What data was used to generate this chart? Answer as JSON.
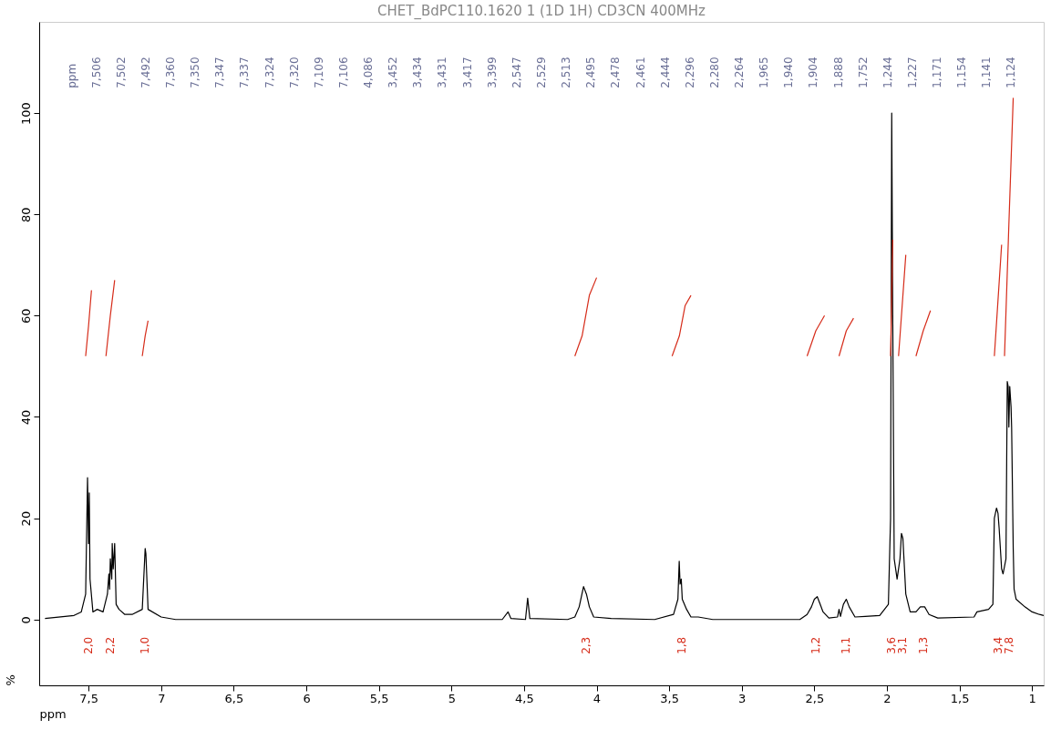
{
  "chart_data": {
    "type": "line",
    "title": "CHET_BdPC110.1620 1 (1D 1H) CD3CN 400MHz",
    "xlabel": "ppm",
    "ylabel": "%",
    "xlim": [
      7.84,
      0.92
    ],
    "ylim": [
      -13,
      118
    ],
    "xticks": [
      {
        "value": 7.5,
        "label": "7,5"
      },
      7,
      {
        "value": 6.5,
        "label": "6,5"
      },
      6,
      {
        "value": 5.5,
        "label": "5,5"
      },
      5,
      {
        "value": 4.5,
        "label": "4,5"
      },
      4,
      {
        "value": 3.5,
        "label": "3,5"
      },
      3,
      {
        "value": 2.5,
        "label": "2,5"
      },
      2,
      {
        "value": 1.5,
        "label": "1,5"
      },
      1
    ],
    "yticks": [
      0,
      20,
      40,
      60,
      80,
      100
    ],
    "grid": false,
    "line_style": "solid",
    "marker": "none",
    "series": [
      {
        "color": "#000000",
        "x": [
          7.8,
          7.6,
          7.55,
          7.52,
          7.507,
          7.5,
          7.495,
          7.49,
          7.47,
          7.44,
          7.4,
          7.37,
          7.36,
          7.355,
          7.35,
          7.34,
          7.337,
          7.33,
          7.32,
          7.31,
          7.29,
          7.25,
          7.2,
          7.13,
          7.11,
          7.105,
          7.09,
          7.0,
          6.9,
          4.65,
          4.61,
          4.59,
          4.49,
          4.475,
          4.46,
          4.2,
          4.15,
          4.12,
          4.09,
          4.07,
          4.05,
          4.02,
          3.9,
          3.6,
          3.47,
          3.44,
          3.431,
          3.425,
          3.417,
          3.41,
          3.38,
          3.35,
          3.3,
          3.2,
          2.6,
          2.55,
          2.52,
          2.5,
          2.48,
          2.46,
          2.44,
          2.4,
          2.34,
          2.33,
          2.32,
          2.3,
          2.28,
          2.26,
          2.22,
          2.15,
          2.05,
          1.99,
          1.975,
          1.967,
          1.96,
          1.95,
          1.94,
          1.93,
          1.91,
          1.9,
          1.89,
          1.87,
          1.84,
          1.8,
          1.77,
          1.74,
          1.71,
          1.65,
          1.4,
          1.38,
          1.3,
          1.27,
          1.26,
          1.245,
          1.235,
          1.227,
          1.21,
          1.2,
          1.18,
          1.171,
          1.165,
          1.16,
          1.154,
          1.145,
          1.141,
          1.13,
          1.124,
          1.11,
          1.05,
          1.0,
          0.95,
          0.92
        ],
        "values": [
          0.2,
          0.8,
          1.5,
          5,
          28,
          15,
          25,
          8,
          1.5,
          2,
          1.5,
          5,
          9,
          6,
          12,
          8,
          15,
          10,
          15,
          3,
          2,
          1,
          1,
          2,
          14,
          13,
          2,
          0.5,
          0,
          0,
          1.5,
          0.2,
          0,
          4.2,
          0.2,
          0,
          0.5,
          2.5,
          6.5,
          5,
          2.5,
          0.5,
          0.2,
          0,
          1,
          4,
          11.5,
          7,
          8,
          4,
          2,
          0.5,
          0.5,
          0,
          0,
          1,
          2.5,
          4,
          4.5,
          3,
          1.5,
          0.3,
          0.5,
          2,
          0.6,
          3,
          4,
          2.5,
          0.5,
          0.6,
          0.8,
          3,
          20,
          100,
          60,
          12,
          10,
          8,
          12,
          17,
          16,
          5,
          1.5,
          1.5,
          2.5,
          2.5,
          1,
          0.3,
          0.5,
          1.5,
          2,
          3,
          20,
          22,
          21,
          18,
          10,
          9,
          12,
          47,
          46,
          38,
          46,
          42,
          38,
          14,
          6,
          4,
          2.5,
          1.5,
          1,
          0.8
        ]
      },
      {
        "color": "#d62c1a",
        "x": [
          7.52,
          7.5,
          7.48
        ],
        "values": [
          52,
          58,
          65
        ]
      },
      {
        "color": "#d62c1a",
        "x": [
          7.38,
          7.35,
          7.32
        ],
        "values": [
          52,
          60,
          67
        ]
      },
      {
        "color": "#d62c1a",
        "x": [
          7.13,
          7.11,
          7.09
        ],
        "values": [
          52,
          56,
          59
        ]
      },
      {
        "color": "#d62c1a",
        "x": [
          4.15,
          4.1,
          4.05,
          4.0
        ],
        "values": [
          52,
          56,
          64,
          67.5
        ]
      },
      {
        "color": "#d62c1a",
        "x": [
          3.48,
          3.43,
          3.39,
          3.35
        ],
        "values": [
          52,
          56,
          62,
          64
        ]
      },
      {
        "color": "#d62c1a",
        "x": [
          2.55,
          2.49,
          2.43
        ],
        "values": [
          52,
          57,
          60
        ]
      },
      {
        "color": "#d62c1a",
        "x": [
          2.33,
          2.28,
          2.23
        ],
        "values": [
          52,
          57,
          59.5
        ]
      },
      {
        "color": "#d62c1a",
        "x": [
          1.975,
          1.967,
          1.96
        ],
        "values": [
          52,
          64,
          75
        ]
      },
      {
        "color": "#d62c1a",
        "x": [
          1.92,
          1.895,
          1.87
        ],
        "values": [
          52,
          62,
          72
        ]
      },
      {
        "color": "#d62c1a",
        "x": [
          1.8,
          1.75,
          1.7
        ],
        "values": [
          52,
          57,
          61
        ]
      },
      {
        "color": "#d62c1a",
        "x": [
          1.26,
          1.235,
          1.21
        ],
        "values": [
          52,
          63,
          74
        ]
      },
      {
        "color": "#d62c1a",
        "x": [
          1.19,
          1.16,
          1.13
        ],
        "values": [
          52,
          78,
          103
        ]
      }
    ],
    "annotations": [
      "ppm",
      "7,506",
      "7,502",
      "7,492",
      "7,360",
      "7,350",
      "7,347",
      "7,337",
      "7,324",
      "7,320",
      "7,109",
      "7,106",
      "4,086",
      "3,452",
      "3,434",
      "3,431",
      "3,417",
      "3,399",
      "2,547",
      "2,529",
      "2,513",
      "2,495",
      "2,478",
      "2,461",
      "2,444",
      "2,296",
      "2,280",
      "2,264",
      "1,965",
      "1,940",
      "1,904",
      "1,888",
      "1,752",
      "1,244",
      "1,227",
      "1,171",
      "1,154",
      "1,141",
      "1,124",
      "2,0",
      "2,2",
      "1,0",
      "2,3",
      "1,8",
      "1,2",
      "1,1",
      "3,6",
      "3,1",
      "1,3",
      "3,4",
      "7,8"
    ]
  }
}
